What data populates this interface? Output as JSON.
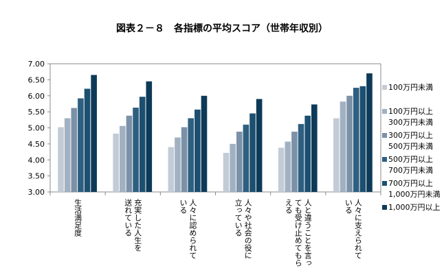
{
  "chart_data": {
    "type": "bar",
    "title": "図表２－８　各指標の平均スコア（世帯年収別）",
    "categories": [
      [
        "生活満足度"
      ],
      [
        "充実した人生を",
        "送れている"
      ],
      [
        "人々に認められて",
        "いる"
      ],
      [
        "人々や社会の役に",
        "立っている"
      ],
      [
        "人と違うことを言っ",
        "ても受け止めてもら",
        "える"
      ],
      [
        "人々に支えられて",
        "いる"
      ]
    ],
    "series": [
      {
        "name": "100万円未満",
        "color": "#c3ccd6",
        "values": [
          5.02,
          4.82,
          4.4,
          4.22,
          4.38,
          5.3
        ]
      },
      {
        "name": "100万円以上300万円未満",
        "color": "#a1b1c2",
        "values": [
          5.3,
          5.06,
          4.7,
          4.5,
          4.57,
          5.82
        ]
      },
      {
        "name": "300万円以上500万円未満",
        "color": "#7b91a8",
        "values": [
          5.62,
          5.38,
          5.02,
          4.88,
          4.88,
          6.0
        ]
      },
      {
        "name": "500万円以上700万円未満",
        "color": "#2e5f80",
        "values": [
          5.92,
          5.63,
          5.3,
          5.1,
          5.12,
          6.25
        ]
      },
      {
        "name": "700万円以上1,000万円未満",
        "color": "#1c4f70",
        "values": [
          6.22,
          5.97,
          5.57,
          5.45,
          5.38,
          6.3
        ]
      },
      {
        "name": "1,000万円以上",
        "color": "#0d3a58",
        "values": [
          6.65,
          6.45,
          6.0,
          5.9,
          5.73,
          6.7
        ]
      }
    ],
    "ylim": [
      3,
      7
    ],
    "yticks": [
      {
        "value": 3,
        "label": "3.00"
      },
      {
        "value": 3.5,
        "label": "3.50"
      },
      {
        "value": 4,
        "label": "4.00"
      },
      {
        "value": 4.5,
        "label": "4.50"
      },
      {
        "value": 5,
        "label": "5.00"
      },
      {
        "value": 5.5,
        "label": "5.50"
      },
      {
        "value": 6,
        "label": "6.00"
      },
      {
        "value": 6.5,
        "label": "6.50"
      },
      {
        "value": 7,
        "label": "7.00"
      }
    ],
    "grid": false
  }
}
